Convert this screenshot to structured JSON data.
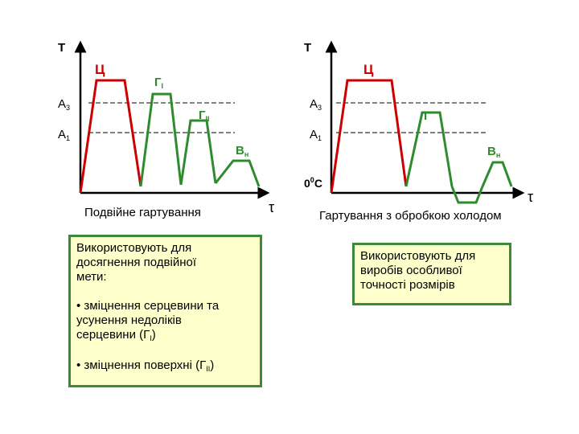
{
  "left": {
    "t_label": "T",
    "ts_label": "Ц",
    "a3_label": "A",
    "a3_sub": "3",
    "a1_label": "A",
    "a1_sub": "1",
    "g1_label": "Г",
    "g1_sub": "I",
    "g2_label": "Г",
    "g2_sub": "II",
    "v_label": "В",
    "v_sub": "н",
    "tau_label": "τ",
    "caption": "Подвійне гартування",
    "note": {
      "line1": "Використовують для",
      "line2": "досягнення подвійної",
      "line3": "мети:",
      "bullet1_line1": "• зміцнення серцевини та",
      "bullet1_line2": "усунення недоліків",
      "bullet1_line3_pre": "серцевини (Г",
      "bullet1_line3_sub": "I",
      "bullet1_line3_post": ")",
      "bullet2_pre": "• зміцнення поверхні (Г",
      "bullet2_sub": "II",
      "bullet2_post": ")"
    }
  },
  "right": {
    "t_label": "T",
    "ts_label": "Ц",
    "a3_label": "A",
    "a3_sub": "3",
    "a1_label": "A",
    "a1_sub": "1",
    "g_label": "Г",
    "v_label": "В",
    "v_sub": "н",
    "zero_pre": "0",
    "zero_sup": "0",
    "zero_post": "C",
    "tau_label": "τ",
    "caption": "Гартування з обробкою холодом",
    "note": {
      "line1": "Використовують для",
      "line2": "виробів особливої",
      "line3": "точності розмірів"
    }
  },
  "colors": {
    "axis": "#000000",
    "red_curve": "#cc0000",
    "green_curve": "#2e8b2e",
    "dashed": "#000000",
    "note_bg": "#ffffcc",
    "note_border": "#3a8a3a"
  }
}
